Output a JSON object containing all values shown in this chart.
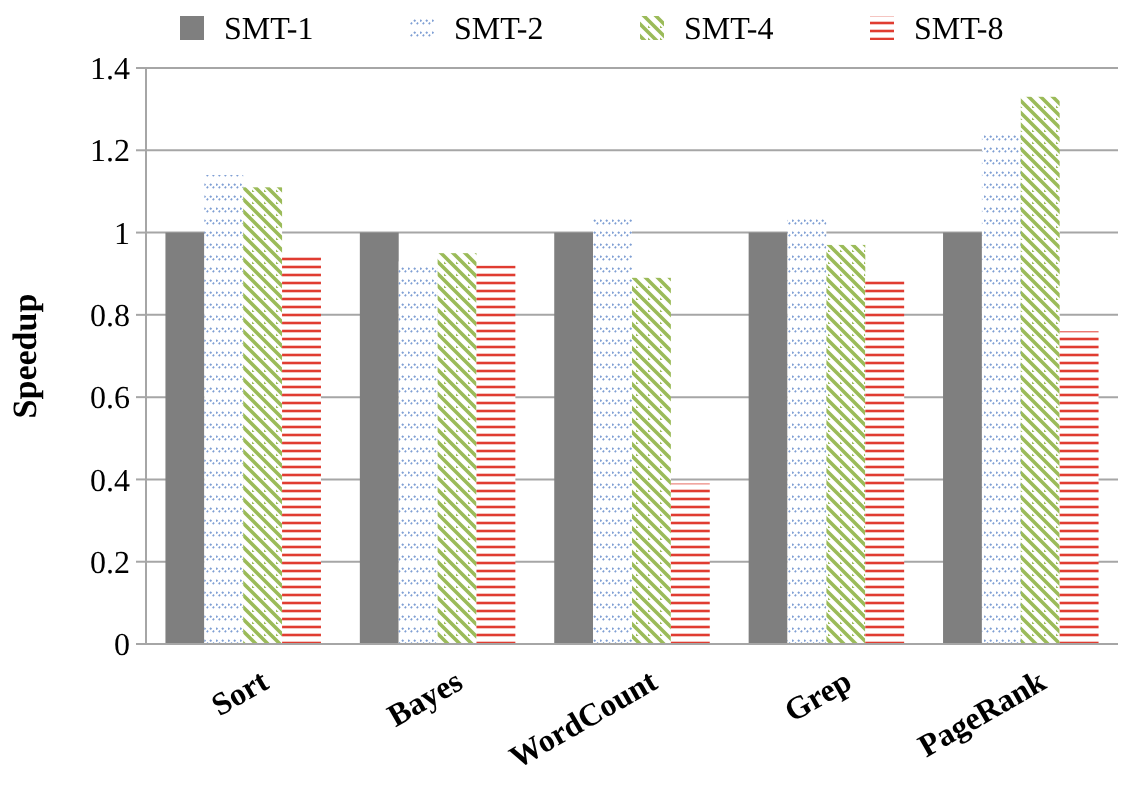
{
  "chart_data": {
    "type": "bar",
    "ylabel": "Speedup",
    "categories": [
      "Sort",
      "Bayes",
      "WordCount",
      "Grep",
      "PageRank"
    ],
    "series": [
      {
        "name": "SMT-1",
        "color": "#7f7f7f",
        "values": [
          1,
          1,
          1,
          1,
          1
        ]
      },
      {
        "name": "SMT-2",
        "color": "#7f9fd4",
        "values": [
          1.14,
          0.93,
          1.04,
          1.04,
          1.25
        ]
      },
      {
        "name": "SMT-4",
        "color": "#9bbb59",
        "values": [
          1.11,
          0.95,
          0.89,
          0.97,
          1.33
        ]
      },
      {
        "name": "SMT-8",
        "color": "#e03c31",
        "values": [
          0.95,
          0.92,
          0.39,
          0.89,
          0.76
        ]
      }
    ],
    "ylim": [
      0,
      1.4
    ],
    "yticks": [
      0,
      0.2,
      0.4,
      0.6,
      0.8,
      1,
      1.2,
      1.4
    ],
    "grid": "y",
    "legend": "top"
  }
}
